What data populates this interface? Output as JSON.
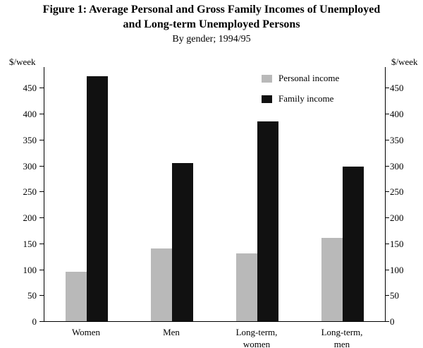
{
  "title_line1": "Figure 1: Average Personal and Gross Family Incomes of Unemployed",
  "title_line2": "and Long-term Unemployed Persons",
  "subtitle": "By gender; 1994/95",
  "chart_data": {
    "type": "bar",
    "categories": [
      "Women",
      "Men",
      "Long-term,\nwomen",
      "Long-term,\nmen"
    ],
    "series": [
      {
        "name": "Personal income",
        "color": "#b9b9b9",
        "values": [
          95,
          140,
          130,
          160
        ]
      },
      {
        "name": "Family income",
        "color": "#111111",
        "values": [
          472,
          305,
          385,
          298
        ]
      }
    ],
    "ylabel_left": "$/week",
    "ylabel_right": "$/week",
    "ylim": [
      0,
      490
    ],
    "yticks": [
      0,
      50,
      100,
      150,
      200,
      250,
      300,
      350,
      400,
      450
    ],
    "legend_position": "top-right",
    "grid": false
  }
}
